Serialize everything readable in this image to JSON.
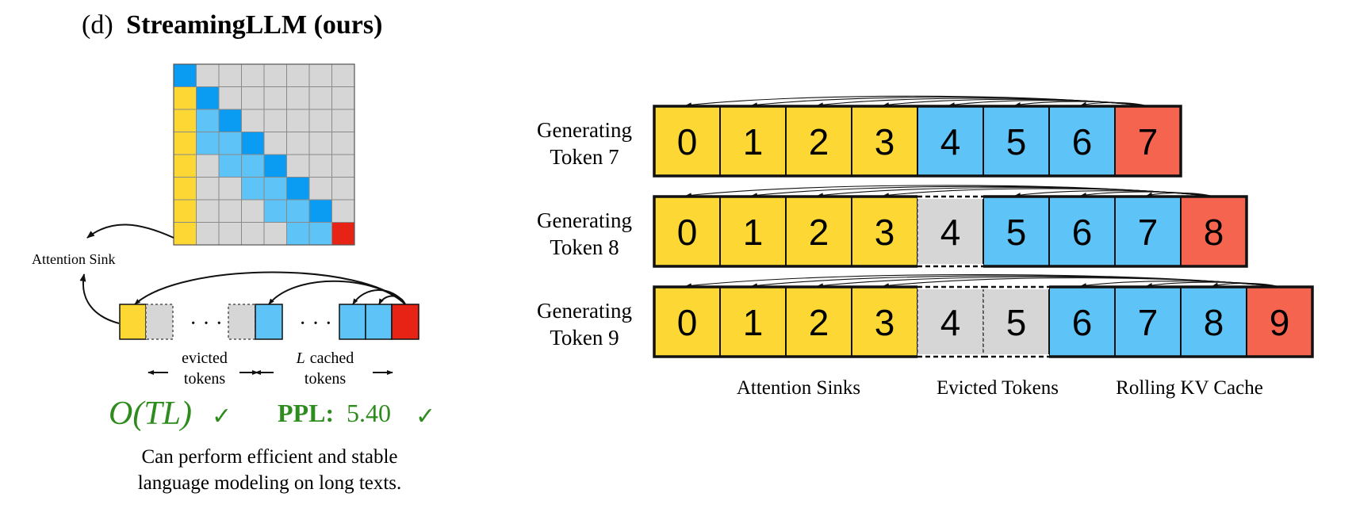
{
  "panel_title_prefix": "(d)",
  "panel_title_main": "StreamingLLM (ours)",
  "colors": {
    "sink": "#FDD835",
    "cached_bright": "#0A9CF2",
    "cached_light": "#5EC3F7",
    "evicted": "#D6D6D6",
    "current": "#F4644F",
    "current_matrix": "#E62314",
    "good": "#2E8B1E"
  },
  "matrix": {
    "size": 8,
    "window": 3,
    "num_sinks": 1
  },
  "left_labels": {
    "attention_sink": "Attention Sink",
    "dots": "· · ·",
    "evicted_1": "evicted",
    "evicted_2": "tokens",
    "cached_prefix": "L",
    "cached_1": "cached",
    "cached_2": "tokens"
  },
  "complexity": {
    "text": "O(TL)",
    "check": "✓"
  },
  "ppl": {
    "label": "PPL:",
    "value": "5.40",
    "check": "✓"
  },
  "caption_line1": "Can perform efficient and stable",
  "caption_line2": "language modeling on long texts.",
  "rows": [
    {
      "label_line1": "Generating",
      "label_line2": "Token 7",
      "tokens": [
        {
          "n": "0",
          "kind": "sink"
        },
        {
          "n": "1",
          "kind": "sink"
        },
        {
          "n": "2",
          "kind": "sink"
        },
        {
          "n": "3",
          "kind": "sink"
        },
        {
          "n": "4",
          "kind": "cached"
        },
        {
          "n": "5",
          "kind": "cached"
        },
        {
          "n": "6",
          "kind": "cached"
        },
        {
          "n": "7",
          "kind": "current"
        }
      ]
    },
    {
      "label_line1": "Generating",
      "label_line2": "Token 8",
      "tokens": [
        {
          "n": "0",
          "kind": "sink"
        },
        {
          "n": "1",
          "kind": "sink"
        },
        {
          "n": "2",
          "kind": "sink"
        },
        {
          "n": "3",
          "kind": "sink"
        },
        {
          "n": "4",
          "kind": "evicted"
        },
        {
          "n": "5",
          "kind": "cached"
        },
        {
          "n": "6",
          "kind": "cached"
        },
        {
          "n": "7",
          "kind": "cached"
        },
        {
          "n": "8",
          "kind": "current"
        }
      ]
    },
    {
      "label_line1": "Generating",
      "label_line2": "Token 9",
      "tokens": [
        {
          "n": "0",
          "kind": "sink"
        },
        {
          "n": "1",
          "kind": "sink"
        },
        {
          "n": "2",
          "kind": "sink"
        },
        {
          "n": "3",
          "kind": "sink"
        },
        {
          "n": "4",
          "kind": "evicted"
        },
        {
          "n": "5",
          "kind": "evicted"
        },
        {
          "n": "6",
          "kind": "cached"
        },
        {
          "n": "7",
          "kind": "cached"
        },
        {
          "n": "8",
          "kind": "cached"
        },
        {
          "n": "9",
          "kind": "current"
        }
      ]
    }
  ],
  "legend": {
    "sinks": "Attention Sinks",
    "evicted": "Evicted Tokens",
    "rolling": "Rolling KV Cache"
  }
}
